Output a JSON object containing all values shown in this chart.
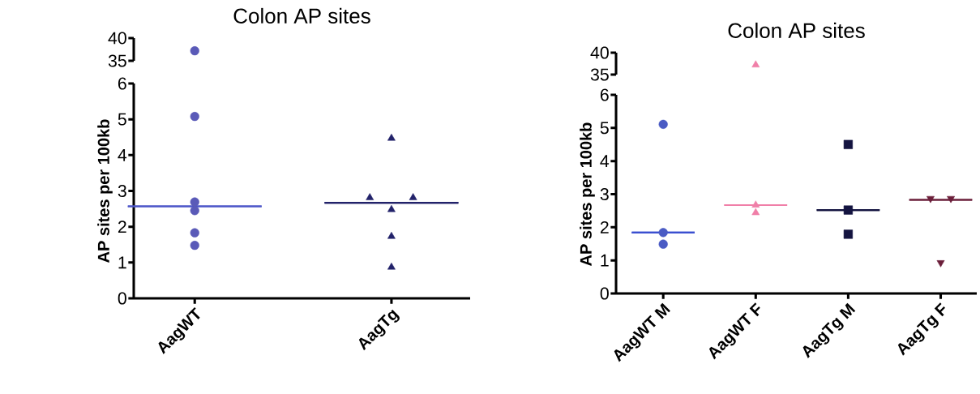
{
  "chart_data": [
    {
      "type": "scatter",
      "title": "Colon AP sites",
      "categories": [
        "AagWT",
        "AagTg"
      ],
      "ylim": [
        35,
        40
      ],
      "yticks": [
        35,
        40
      ],
      "tick_labels": "y",
      "grid": false,
      "series": [
        {
          "color": "#5a5ab8",
          "marker": "circle",
          "x": [
            "AagWT"
          ],
          "values": [
            37.2
          ]
        }
      ]
    },
    {
      "type": "scatter",
      "ylabel": "AP sites per 100kb",
      "categories": [
        "AagWT",
        "AagTg"
      ],
      "ylim": [
        0,
        6
      ],
      "yticks": [
        0,
        1,
        2,
        3,
        4,
        5,
        6
      ],
      "grid": false,
      "series": [
        {
          "color": "#5a5ab8",
          "marker": "circle",
          "x": [
            "AagWT",
            "AagWT",
            "AagWT",
            "AagWT",
            "AagWT"
          ],
          "values": [
            5.08,
            2.69,
            2.45,
            1.83,
            1.48
          ]
        },
        {
          "color": "#22226a",
          "marker": "triangle",
          "x": [
            "AagTg",
            "AagTg",
            "AagTg",
            "AagTg",
            "AagTg",
            "AagTg"
          ],
          "values": [
            4.47,
            2.81,
            2.81,
            2.48,
            1.73,
            0.87
          ]
        },
        {
          "type": "box",
          "color": "#4b55c8",
          "boxes": [
            {
              "low": 2.57,
              "q1": 2.57,
              "median": 2.57,
              "q3": 2.57,
              "high": 2.57
            },
            null
          ]
        },
        {
          "type": "box",
          "color": "#22226a",
          "boxes": [
            null,
            {
              "low": 2.67,
              "q1": 2.67,
              "median": 2.67,
              "q3": 2.67,
              "high": 2.67
            }
          ]
        }
      ]
    },
    {
      "type": "scatter",
      "title": "Colon AP sites",
      "categories": [
        "AagWT M",
        "AagWT F",
        "AagTg M",
        "AagTg F"
      ],
      "ylim": [
        35,
        40
      ],
      "yticks": [
        35,
        40
      ],
      "tick_labels": "y",
      "grid": false,
      "series": [
        {
          "color": "#f07fa8",
          "marker": "triangle",
          "x": [
            "AagWT F"
          ],
          "values": [
            37.2
          ]
        }
      ]
    },
    {
      "type": "scatter",
      "ylabel": "AP sites per 100kb",
      "categories": [
        "AagWT M",
        "AagWT F",
        "AagTg M",
        "AagTg F"
      ],
      "ylim": [
        0,
        6
      ],
      "yticks": [
        0,
        1,
        2,
        3,
        4,
        5,
        6
      ],
      "grid": false,
      "series": [
        {
          "color": "#4a5bc4",
          "marker": "circle",
          "x": [
            "AagWT M",
            "AagWT M",
            "AagWT M"
          ],
          "values": [
            5.11,
            1.84,
            1.49
          ]
        },
        {
          "color": "#f07fa8",
          "marker": "triangle",
          "x": [
            "AagWT F",
            "AagWT F"
          ],
          "values": [
            2.67,
            2.44
          ]
        },
        {
          "color": "#141440",
          "marker": "square",
          "x": [
            "AagTg M",
            "AagTg M",
            "AagTg M"
          ],
          "values": [
            4.5,
            2.52,
            1.79
          ]
        },
        {
          "color": "#6b1f3a",
          "marker": "triangle-down",
          "x": [
            "AagTg F",
            "AagTg F",
            "AagTg F"
          ],
          "values": [
            2.87,
            2.87,
            0.93
          ]
        },
        {
          "type": "box",
          "color": "#3b4fd0",
          "boxes": [
            {
              "low": 1.84,
              "q1": 1.84,
              "median": 1.84,
              "q3": 1.84,
              "high": 1.84
            },
            null,
            null,
            null
          ]
        },
        {
          "type": "box",
          "color": "#f07fa8",
          "boxes": [
            null,
            {
              "low": 2.67,
              "q1": 2.67,
              "median": 2.67,
              "q3": 2.67,
              "high": 2.67
            },
            null,
            null
          ]
        },
        {
          "type": "box",
          "color": "#141440",
          "boxes": [
            null,
            null,
            {
              "low": 2.52,
              "q1": 2.52,
              "median": 2.52,
              "q3": 2.52,
              "high": 2.52
            },
            null
          ]
        },
        {
          "type": "box",
          "color": "#6b1f3a",
          "boxes": [
            null,
            null,
            null,
            {
              "low": 2.83,
              "q1": 2.83,
              "median": 2.83,
              "q3": 2.83,
              "high": 2.83
            }
          ]
        }
      ]
    }
  ]
}
